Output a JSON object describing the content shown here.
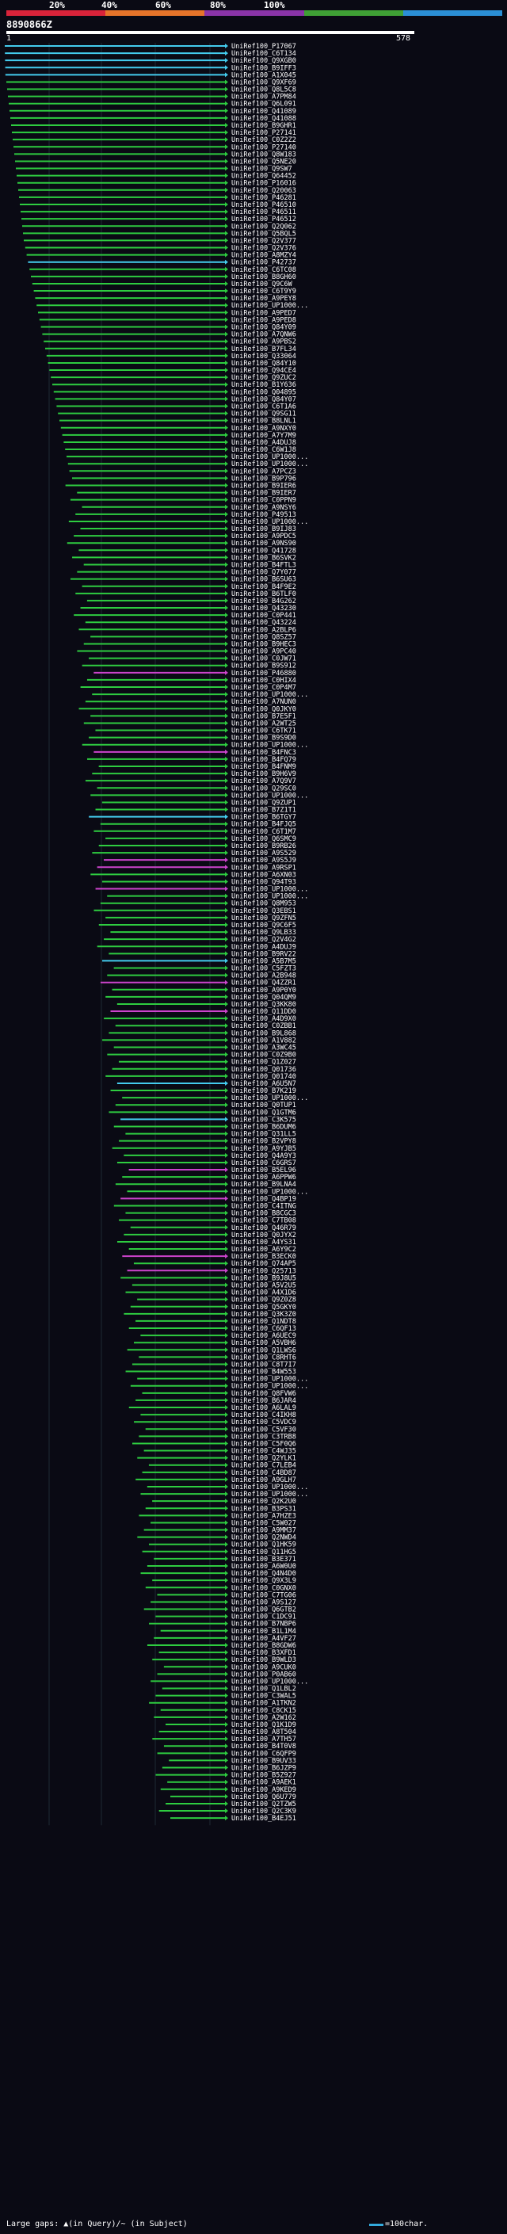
{
  "header": {
    "query_id": "8890866Z",
    "query_start": "1",
    "query_end": "578",
    "pct_labels": [
      "20%",
      "40%",
      "60%",
      "80%",
      "100%"
    ],
    "colorbar": [
      "#d9233a",
      "#e6742a",
      "#8a34a8",
      "#3fa035",
      "#2b8fd6"
    ]
  },
  "colors": {
    "green": "#2ecc40",
    "cyan": "#44ccee",
    "magenta": "#cc44cc",
    "background": "#0a0a14"
  },
  "hits": [
    "UniRef100_P17067",
    "UniRef100_C6T134",
    "UniRef100_Q9XGB0",
    "UniRef100_B9IFF3",
    "UniRef100_A1X045",
    "UniRef100_Q9XF69",
    "UniRef100_Q8L5C8",
    "UniRef100_A7PM84",
    "UniRef100_Q6L091",
    "UniRef100_Q41089",
    "UniRef100_Q41088",
    "UniRef100_B9GHR1",
    "UniRef100_P27141",
    "UniRef100_C0Z2Z2",
    "UniRef100_P27140",
    "UniRef100_Q8W183",
    "UniRef100_Q5NE20",
    "UniRef100_Q9SW7",
    "UniRef100_Q64452",
    "UniRef100_P16016",
    "UniRef100_Q20063",
    "UniRef100_P46281",
    "UniRef100_P46510",
    "UniRef100_P46511",
    "UniRef100_P46512",
    "UniRef100_Q2Q062",
    "UniRef100_Q5BQL5",
    "UniRef100_Q2V377",
    "UniRef100_Q2V376",
    "UniRef100_A8MZY4",
    "UniRef100_P42737",
    "UniRef100_C6TC08",
    "UniRef100_B8GH60",
    "UniRef100_Q9C6W",
    "UniRef100_C6T9Y9",
    "UniRef100_A9PEY8",
    "UniRef100_UP1000...",
    "UniRef100_A9PED7",
    "UniRef100_A9PED8",
    "UniRef100_Q84Y09",
    "UniRef100_A7QNW6",
    "UniRef100_A9PBS2",
    "UniRef100_B7FL34",
    "UniRef100_Q33064",
    "UniRef100_Q84Y10",
    "UniRef100_Q94CE4",
    "UniRef100_Q9ZUC2",
    "UniRef100_B1Y636",
    "UniRef100_Q04895",
    "UniRef100_Q84Y07",
    "UniRef100_C6T1A6",
    "UniRef100_Q9SG11",
    "UniRef100_B8LNL1",
    "UniRef100_A9NXY0",
    "UniRef100_A7Y7M9",
    "UniRef100_A4DUJ8",
    "UniRef100_C6W1J8",
    "UniRef100_UP1000...",
    "UniRef100_UP1000...",
    "UniRef100_A7PCZ3",
    "UniRef100_B9P796",
    "UniRef100_B9IER6",
    "UniRef100_B9IER7",
    "UniRef100_C0PPN9",
    "UniRef100_A9NSY6",
    "UniRef100_P49513",
    "UniRef100_UP1000...",
    "UniRef100_B9IJ83",
    "UniRef100_A9PDC5",
    "UniRef100_A9NS90",
    "UniRef100_Q41728",
    "UniRef100_B6SVK2",
    "UniRef100_B4FTL3",
    "UniRef100_Q7Y077",
    "UniRef100_B6SU63",
    "UniRef100_B4F9E2",
    "UniRef100_B6TLF0",
    "UniRef100_B4G262",
    "UniRef100_Q43230",
    "UniRef100_C0P441",
    "UniRef100_Q43224",
    "UniRef100_A2BLP6",
    "UniRef100_Q8SZ57",
    "UniRef100_B9HEC3",
    "UniRef100_A9PC40",
    "UniRef100_C0JW71",
    "UniRef100_B9S912",
    "UniRef100_P46880",
    "UniRef100_C0HIX4",
    "UniRef100_C0P4M7",
    "UniRef100_UP1000...",
    "UniRef100_A7NUN0",
    "UniRef100_Q0JKY0",
    "UniRef100_B7E5F1",
    "UniRef100_A2WT25",
    "UniRef100_C6TK71",
    "UniRef100_B9S9D0",
    "UniRef100_UP1000...",
    "UniRef100_B4FNC3",
    "UniRef100_B4FQ79",
    "UniRef100_B4FNM9",
    "UniRef100_B9H6V9",
    "UniRef100_A7Q9V7",
    "UniRef100_Q29SC0",
    "UniRef100_UP1000...",
    "UniRef100_Q9ZUP1",
    "UniRef100_B7Z1T1",
    "UniRef100_B6TGY7",
    "UniRef100_B4FJQ5",
    "UniRef100_C6T1M7",
    "UniRef100_Q6SMC9",
    "UniRef100_B9RB26",
    "UniRef100_A9S529",
    "UniRef100_A9S5J9",
    "UniRef100_A9RSP1",
    "UniRef100_A6XN03",
    "UniRef100_Q94T93",
    "UniRef100_UP1000...",
    "UniRef100_UP1000...",
    "UniRef100_Q8M953",
    "UniRef100_Q3EBS1",
    "UniRef100_Q9ZFN5",
    "UniRef100_Q9C6F5",
    "UniRef100_Q9LB33",
    "UniRef100_Q2V4G2",
    "UniRef100_A4DUJ9",
    "UniRef100_B9RV22",
    "UniRef100_A5B7M5",
    "UniRef100_C5FZT3",
    "UniRef100_A2B948",
    "UniRef100_Q4ZZR1",
    "UniRef100_A9P0Y0",
    "UniRef100_Q04QM9",
    "UniRef100_Q3KK80",
    "UniRef100_Q11DD0",
    "UniRef100_A4D9X0",
    "UniRef100_C0ZBB1",
    "UniRef100_B9L868",
    "UniRef100_A1V882",
    "UniRef100_A3WC45",
    "UniRef100_C0Z9B0",
    "UniRef100_Q1Z027",
    "UniRef100_Q01736",
    "UniRef100_Q01740",
    "UniRef100_A6U5N7",
    "UniRef100_B7K219",
    "UniRef100_UP1000...",
    "UniRef100_Q0TUP1",
    "UniRef100_Q1GTM6",
    "UniRef100_C3K575",
    "UniRef100_B6DUM6",
    "UniRef100_Q31LL5",
    "UniRef100_B2VPY8",
    "UniRef100_A9YJB5",
    "UniRef100_Q4A9Y3",
    "UniRef100_C6GRS7",
    "UniRef100_B5EL96",
    "UniRef100_A6PPW6",
    "UniRef100_B9LNA4",
    "UniRef100_UP1000...",
    "UniRef100_Q4BP19",
    "UniRef100_C4ITNG",
    "UniRef100_B8CGC3",
    "UniRef100_C7TB08",
    "UniRef100_Q46R79",
    "UniRef100_Q0JYX2",
    "UniRef100_A4YS31",
    "UniRef100_A6Y9C2",
    "UniRef100_B3ECK0",
    "UniRef100_Q74AP5",
    "UniRef100_Q25713",
    "UniRef100_B9J8U5",
    "UniRef100_A5V2U5",
    "UniRef100_A4X1D6",
    "UniRef100_Q9Z0Z8",
    "UniRef100_Q5GKY0",
    "UniRef100_Q3K3Z0",
    "UniRef100_Q1NDT8",
    "UniRef100_C6QF13",
    "UniRef100_A6UEC9",
    "UniRef100_A5VBH6",
    "UniRef100_Q1LWS6",
    "UniRef100_C8RHT6",
    "UniRef100_C8T7I7",
    "UniRef100_B4W553",
    "UniRef100_UP1000...",
    "UniRef100_UP1000...",
    "UniRef100_Q8FVW6",
    "UniRef100_B6JAR4",
    "UniRef100_A6LAL9",
    "UniRef100_C4IKH8",
    "UniRef100_C5VDC9",
    "UniRef100_C5VF30",
    "UniRef100_C3TRB8",
    "UniRef100_C5F0Q6",
    "UniRef100_C4WJ35",
    "UniRef100_Q2YLK1",
    "UniRef100_C7LEB4",
    "UniRef100_C4BD87",
    "UniRef100_A9GLH7",
    "UniRef100_UP1000...",
    "UniRef100_UP1000...",
    "UniRef100_Q2K2U0",
    "UniRef100_B3PS31",
    "UniRef100_A7HZE3",
    "UniRef100_C5W027",
    "UniRef100_A9MM37",
    "UniRef100_Q2NWD4",
    "UniRef100_Q1HK59",
    "UniRef100_Q11HG5",
    "UniRef100_B3E371",
    "UniRef100_A6W0U0",
    "UniRef100_Q4N4D0",
    "UniRef100_Q9X3L9",
    "UniRef100_C0GNX0",
    "UniRef100_C7TG06",
    "UniRef100_A9S127",
    "UniRef100_Q6GTB2",
    "UniRef100_C1DC91",
    "UniRef100_B7NBP6",
    "UniRef100_B1L1M4",
    "UniRef100_A4VF27",
    "UniRef100_B8GDW6",
    "UniRef100_B3XFD1",
    "UniRef100_B9WLD3",
    "UniRef100_A9CUK0",
    "UniRef100_P0AB60",
    "UniRef100_UP1000...",
    "UniRef100_Q1LBL2",
    "UniRef100_C3WAL5",
    "UniRef100_A1TKN2",
    "UniRef100_C8CK15",
    "UniRef100_A2W162",
    "UniRef100_Q1K1D9",
    "UniRef100_A8T504",
    "UniRef100_A7TH57",
    "UniRef100_B4T0V8",
    "UniRef100_C6QFP9",
    "UniRef100_B9UV33",
    "UniRef100_B6JZP9",
    "UniRef100_B5Z927",
    "UniRef100_A9AEK1",
    "UniRef100_A9KED9",
    "UniRef100_Q6U779",
    "UniRef100_Q2TZW5",
    "UniRef100_Q2C3K9",
    "UniRef100_B4EJ51"
  ],
  "footer": {
    "legend_text": "Large gaps: ▲(in Query)/~ (in Subject)",
    "scale_text": "=100char."
  }
}
